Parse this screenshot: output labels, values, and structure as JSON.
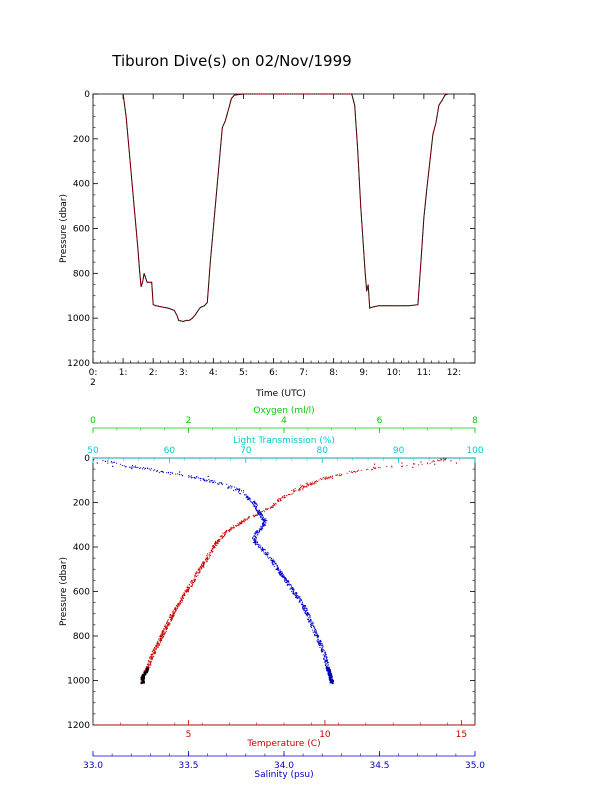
{
  "title": "Tiburon Dive(s) on 02/Nov/1999",
  "chart_data": [
    {
      "type": "line",
      "title": "Tiburon Dive(s) on 02/Nov/1999",
      "xlabel": "Time (UTC)",
      "ylabel": "Pressure (dbar)",
      "xlim": [
        0,
        12.7
      ],
      "ylim": [
        1200,
        0
      ],
      "x_ticks": [
        0,
        1,
        2,
        3,
        4,
        5,
        6,
        7,
        8,
        9,
        10,
        11,
        12
      ],
      "x_tick_labels": [
        "0:",
        "1:",
        "2:",
        "3:",
        "4:",
        "5:",
        "6:",
        "7:",
        "8:",
        "9:",
        "10:",
        "11:",
        "12:"
      ],
      "x_sublabel": "2",
      "y_ticks": [
        0,
        200,
        400,
        600,
        800,
        1000,
        1200
      ],
      "y_tick_labels": [
        "0",
        "200",
        "400",
        "600",
        "800",
        "1000",
        "1200"
      ],
      "grid": false,
      "series": [
        {
          "color": "#cc0000",
          "x": [
            1.0,
            1.1,
            1.2,
            1.3,
            1.4,
            1.5,
            1.55,
            1.6,
            1.65,
            1.7,
            1.8,
            1.95,
            2.0,
            2.1,
            2.3,
            2.5,
            2.7,
            2.8,
            2.85,
            3.0,
            3.1,
            3.2,
            3.3,
            3.4,
            3.5,
            3.55,
            3.6,
            3.7,
            3.8,
            3.9,
            4.0,
            4.1,
            4.2,
            4.3,
            4.4,
            4.5,
            4.6,
            4.7,
            5.0,
            6.0,
            7.0,
            8.0,
            8.6,
            8.7,
            8.8,
            8.9,
            9.0,
            9.05,
            9.1,
            9.15,
            9.2,
            9.3,
            9.5,
            10.0,
            10.5,
            10.8,
            10.9,
            11.0,
            11.1,
            11.2,
            11.3,
            11.4,
            11.5,
            11.6,
            11.7,
            11.8
          ],
          "y": [
            0,
            100,
            250,
            400,
            550,
            700,
            790,
            860,
            840,
            800,
            840,
            840,
            940,
            945,
            950,
            955,
            965,
            990,
            1010,
            1015,
            1010,
            1010,
            1000,
            985,
            965,
            955,
            950,
            945,
            930,
            750,
            600,
            450,
            300,
            150,
            120,
            70,
            20,
            5,
            0,
            0,
            0,
            0,
            0,
            50,
            250,
            500,
            700,
            800,
            880,
            850,
            955,
            950,
            945,
            945,
            945,
            940,
            750,
            550,
            420,
            300,
            180,
            130,
            50,
            30,
            5,
            0
          ]
        }
      ]
    },
    {
      "type": "scatter",
      "ylabel": "Pressure (dbar)",
      "ylim": [
        1200,
        0
      ],
      "y_ticks": [
        0,
        200,
        400,
        600,
        800,
        1000,
        1200
      ],
      "y_tick_labels": [
        "0",
        "200",
        "400",
        "600",
        "800",
        "1000",
        "1200"
      ],
      "grid": false,
      "axes": [
        {
          "label": "Oxygen (ml/l)",
          "position": "top",
          "color": "#00cc00",
          "range": [
            0,
            8
          ],
          "ticks": [
            0,
            2,
            4,
            6,
            8
          ],
          "tick_labels": [
            "0",
            "2",
            "4",
            "6",
            "8"
          ]
        },
        {
          "label": "Light Transmission (%)",
          "position": "top",
          "color": "#00cccc",
          "range": [
            50,
            100
          ],
          "ticks": [
            50,
            60,
            70,
            80,
            90,
            100
          ],
          "tick_labels": [
            "50",
            "60",
            "70",
            "80",
            "90",
            "100"
          ]
        },
        {
          "label": "Temperature (C)",
          "position": "bottom",
          "color": "#cc0000",
          "range": [
            1.5,
            15.5
          ],
          "ticks": [
            5,
            10,
            15
          ],
          "tick_labels": [
            "5",
            "10",
            "15"
          ]
        },
        {
          "label": "Salinity (psu)",
          "position": "bottom",
          "color": "#0000cc",
          "range": [
            33.0,
            35.0
          ],
          "ticks": [
            33.0,
            33.5,
            34.0,
            34.5,
            35.0
          ],
          "tick_labels": [
            "33.0",
            "33.5",
            "34.0",
            "34.5",
            "35.0"
          ]
        }
      ],
      "series": [
        {
          "axis": "Temperature (C)",
          "color": "#cc0000",
          "x": [
            14.5,
            14.2,
            13.8,
            13.0,
            12.0,
            11.0,
            10.0,
            9.3,
            8.8,
            8.4,
            8.0,
            7.5,
            7.0,
            6.6,
            6.3,
            6.0,
            5.8,
            5.6,
            5.4,
            5.2,
            5.0,
            4.8,
            4.6,
            4.4,
            4.2,
            4.0,
            3.8,
            3.6,
            3.5,
            3.4,
            3.3,
            3.3
          ],
          "y": [
            0,
            10,
            20,
            30,
            40,
            60,
            90,
            120,
            150,
            180,
            220,
            250,
            280,
            310,
            340,
            380,
            420,
            460,
            500,
            540,
            580,
            620,
            660,
            700,
            750,
            800,
            850,
            900,
            940,
            960,
            980,
            1010
          ]
        },
        {
          "axis": "Salinity (psu)",
          "color": "#0000cc",
          "x": [
            33.05,
            33.15,
            33.3,
            33.5,
            33.65,
            33.75,
            33.8,
            33.84,
            33.86,
            33.88,
            33.9,
            33.89,
            33.86,
            33.84,
            33.85,
            33.9,
            33.95,
            34.0,
            34.05,
            34.1,
            34.13,
            34.16,
            34.19,
            34.21,
            34.22,
            34.23,
            34.24,
            34.25
          ],
          "y": [
            10,
            30,
            50,
            80,
            110,
            140,
            170,
            200,
            230,
            260,
            280,
            300,
            330,
            360,
            380,
            420,
            480,
            540,
            600,
            660,
            720,
            780,
            840,
            880,
            920,
            950,
            980,
            1010
          ]
        }
      ]
    }
  ]
}
